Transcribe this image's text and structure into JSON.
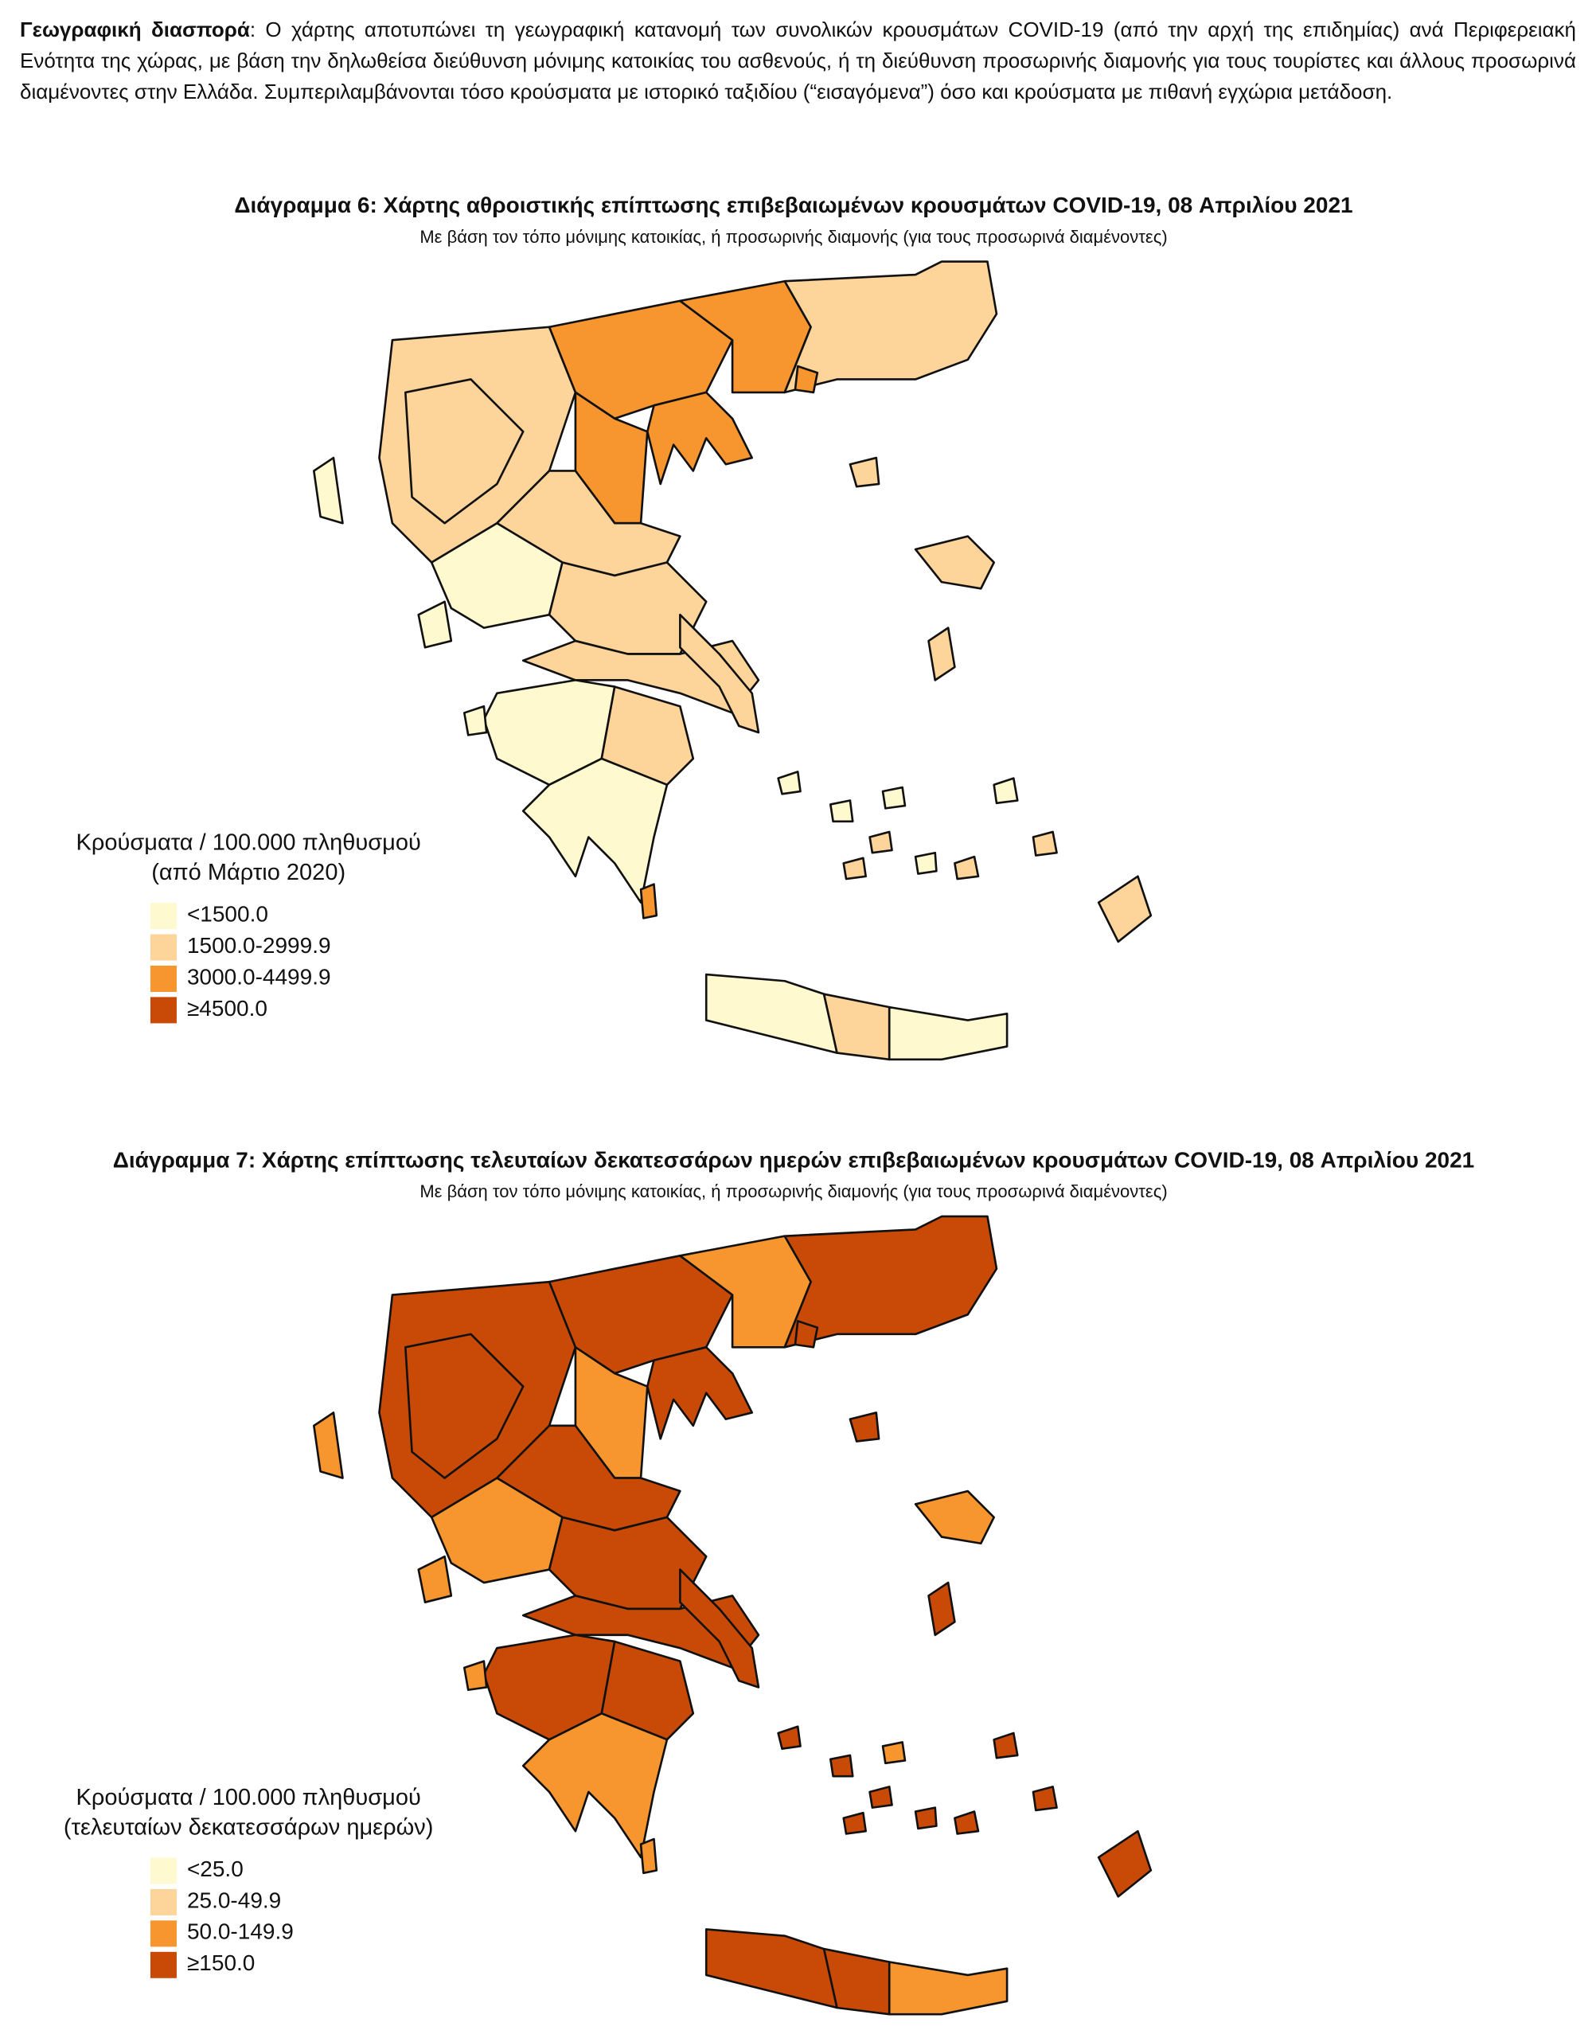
{
  "intro": {
    "lead": "Γεωγραφική διασπορά",
    "text": ": Ο χάρτης αποτυπώνει τη γεωγραφική κατανομή των συνολικών κρουσμάτων COVID-19 (από την αρχή της επιδημίας) ανά Περιφερειακή Ενότητα της χώρας, με βάση την δηλωθείσα διεύθυνση μόνιμης κατοικίας του ασθενούς, ή τη διεύθυνση προσωρινής διαμονής για τους τουρίστες και άλλους προσωρινά διαμένοντες στην Ελλάδα. Συμπεριλαμβάνονται τόσο κρούσματα με ιστορικό ταξιδίου (“εισαγόμενα”) όσο και κρούσματα με πιθανή εγχώρια μετάδοση."
  },
  "maps": [
    {
      "title": "Διάγραμμα 6: Χάρτης αθροιστικής επίπτωσης επιβεβαιωμένων κρουσμάτων COVID-19, 08 Απριλίου 2021",
      "subtitle": "Με βάση τον τόπο μόνιμης κατοικίας, ή προσωρινής διαμονής (για τους προσωρινά διαμένοντες)",
      "legend": {
        "title": [
          "Κρούσματα / 100.000 πληθυσμού",
          "(από Μάρτιο 2020)"
        ],
        "items": [
          {
            "label": "<1500.0",
            "color": "#fff9cf"
          },
          {
            "label": "1500.0-2999.9",
            "color": "#fdd49a"
          },
          {
            "label": "3000.0-4499.9",
            "color": "#f7952f"
          },
          {
            "label": "≥4500.0",
            "color": "#c94a06"
          }
        ]
      }
    },
    {
      "title": "Διάγραμμα 7: Χάρτης επίπτωσης τελευταίων δεκατεσσάρων ημερών επιβεβαιωμένων κρουσμάτων COVID-19, 08 Απριλίου 2021",
      "subtitle": "Με βάση τον τόπο μόνιμης κατοικίας, ή προσωρινής διαμονής (για τους προσωρινά διαμένοντες)",
      "legend": {
        "title": [
          "Κρούσματα / 100.000 πληθυσμού",
          "(τελευταίων δεκατεσσάρων ημερών)"
        ],
        "items": [
          {
            "label": "<25.0",
            "color": "#fff9cf"
          },
          {
            "label": "25.0-49.9",
            "color": "#fdd49a"
          },
          {
            "label": "50.0-149.9",
            "color": "#f7952f"
          },
          {
            "label": "≥150.0",
            "color": "#c94a06"
          }
        ]
      }
    }
  ]
}
